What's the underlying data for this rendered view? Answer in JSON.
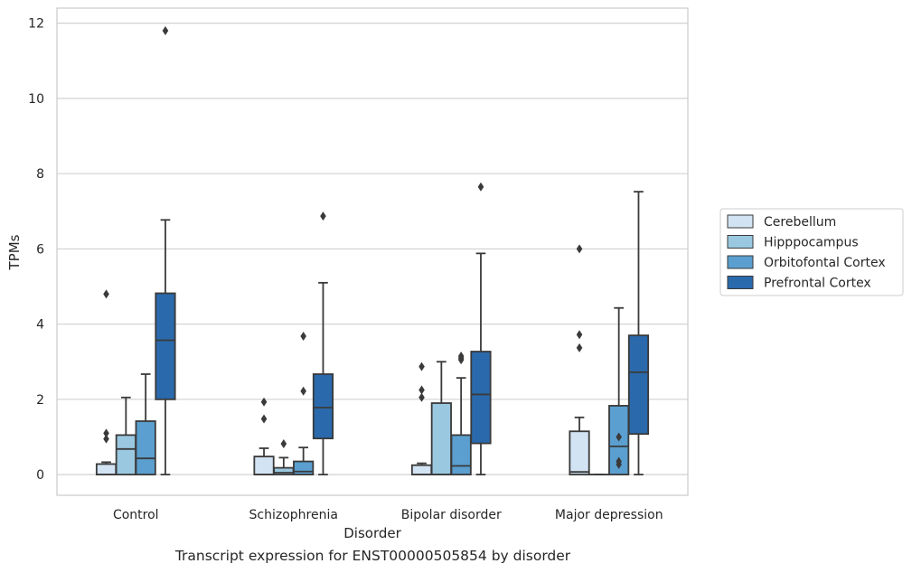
{
  "caption": "Transcript expression for ENST00000505854 by disorder",
  "chart_data": {
    "type": "box",
    "xlabel": "Disorder",
    "ylabel": "TPMs",
    "ylim": [
      -0.55,
      12.4
    ],
    "yticks": [
      0,
      2,
      4,
      6,
      8,
      10,
      12
    ],
    "categories": [
      "Control",
      "Schizophrenia",
      "Bipolar disorder",
      "Major depression"
    ],
    "grid": true,
    "legend_position": "right",
    "series": [
      {
        "name": "Cerebellum",
        "color": "#d2e3f3",
        "boxes": [
          {
            "whislo": 0,
            "q1": 0,
            "med": 0,
            "q3": 0.28,
            "whishi": 0.33,
            "fliers": [
              0.95,
              1.1,
              4.8
            ]
          },
          {
            "whislo": 0,
            "q1": 0,
            "med": 0,
            "q3": 0.48,
            "whishi": 0.7,
            "fliers": [
              1.48,
              1.93
            ]
          },
          {
            "whislo": 0,
            "q1": 0,
            "med": 0,
            "q3": 0.25,
            "whishi": 0.3,
            "fliers": [
              2.05,
              2.25,
              2.87
            ]
          },
          {
            "whislo": 0,
            "q1": 0,
            "med": 0.07,
            "q3": 1.15,
            "whishi": 1.52,
            "fliers": [
              3.37,
              3.72,
              6.0
            ]
          }
        ]
      },
      {
        "name": "Hipppocampus",
        "color": "#9ac8e0",
        "boxes": [
          {
            "whislo": 0,
            "q1": 0,
            "med": 0.68,
            "q3": 1.05,
            "whishi": 2.05,
            "fliers": []
          },
          {
            "whislo": 0,
            "q1": 0,
            "med": 0.05,
            "q3": 0.18,
            "whishi": 0.45,
            "fliers": [
              0.82
            ]
          },
          {
            "whislo": 0,
            "q1": 0,
            "med": 0,
            "q3": 1.9,
            "whishi": 3.0,
            "fliers": []
          },
          {
            "whislo": 0,
            "q1": 0,
            "med": 0,
            "q3": 0,
            "whishi": 0,
            "fliers": []
          }
        ]
      },
      {
        "name": "Orbitofontal Cortex",
        "color": "#5a9fcf",
        "boxes": [
          {
            "whislo": 0,
            "q1": 0,
            "med": 0.43,
            "q3": 1.42,
            "whishi": 2.67,
            "fliers": []
          },
          {
            "whislo": 0,
            "q1": 0,
            "med": 0.08,
            "q3": 0.35,
            "whishi": 0.72,
            "fliers": [
              2.22,
              3.68
            ]
          },
          {
            "whislo": 0,
            "q1": 0,
            "med": 0.23,
            "q3": 1.05,
            "whishi": 2.57,
            "fliers": [
              3.05,
              3.1,
              3.15
            ]
          },
          {
            "whislo": 0,
            "q1": 0,
            "med": 0.75,
            "q3": 1.83,
            "whishi": 4.43,
            "fliers": [
              0.27,
              0.35,
              1.0
            ]
          }
        ]
      },
      {
        "name": "Prefrontal Cortex",
        "color": "#2a69ab",
        "boxes": [
          {
            "whislo": 0,
            "q1": 2.0,
            "med": 3.57,
            "q3": 4.82,
            "whishi": 6.77,
            "fliers": [
              11.8
            ]
          },
          {
            "whislo": 0,
            "q1": 0.96,
            "med": 1.78,
            "q3": 2.67,
            "whishi": 5.1,
            "fliers": [
              6.87
            ]
          },
          {
            "whislo": 0,
            "q1": 0.83,
            "med": 2.13,
            "q3": 3.27,
            "whishi": 5.88,
            "fliers": [
              7.65
            ]
          },
          {
            "whislo": 0,
            "q1": 1.08,
            "med": 2.72,
            "q3": 3.7,
            "whishi": 7.52,
            "fliers": []
          }
        ]
      }
    ]
  }
}
